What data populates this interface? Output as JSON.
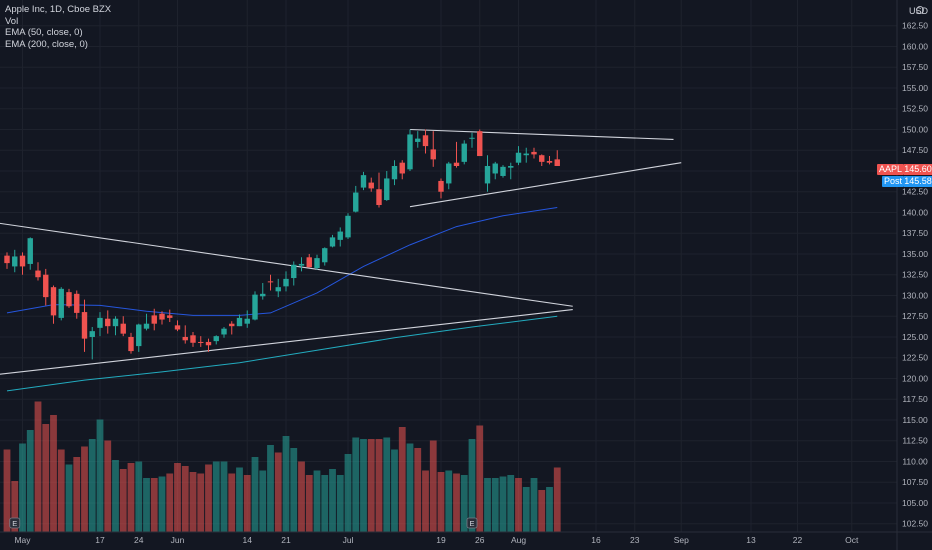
{
  "legend": {
    "title": "Apple Inc, 1D, Cboe BZX",
    "vol": "Vol",
    "ema50": "EMA (50, close, 0)",
    "ema200": "EMA (200, close, 0)"
  },
  "currency": "USD",
  "tags": {
    "symbol": "AAPL",
    "last": "145.60",
    "post_label": "Post",
    "post": "145.58"
  },
  "colors": {
    "background": "#131722",
    "up": "#26a69a",
    "down": "#ef5350",
    "ema50": "#2962ff",
    "ema200": "#26c6da",
    "trendline": "#d1d4dc",
    "post": "#2196f3"
  },
  "chart_data": {
    "type": "candlestick",
    "y_axis": {
      "min": 101.5,
      "max": 165,
      "ticks": [
        102.5,
        105.0,
        107.5,
        110.0,
        112.5,
        115.0,
        117.5,
        120.0,
        122.5,
        125.0,
        127.5,
        130.0,
        132.5,
        135.0,
        137.5,
        140.0,
        142.5,
        145.0,
        147.5,
        150.0,
        152.5,
        155.0,
        157.5,
        160.0,
        162.5
      ]
    },
    "x_axis": {
      "ticks": [
        {
          "label": "May",
          "idx": 2
        },
        {
          "label": "17",
          "idx": 12
        },
        {
          "label": "24",
          "idx": 17
        },
        {
          "label": "Jun",
          "idx": 22
        },
        {
          "label": "14",
          "idx": 31
        },
        {
          "label": "21",
          "idx": 36
        },
        {
          "label": "Jul",
          "idx": 44
        },
        {
          "label": "19",
          "idx": 56
        },
        {
          "label": "26",
          "idx": 61
        },
        {
          "label": "Aug",
          "idx": 66
        },
        {
          "label": "16",
          "idx": 76
        },
        {
          "label": "23",
          "idx": 81
        },
        {
          "label": "Sep",
          "idx": 87
        },
        {
          "label": "13",
          "idx": 96
        },
        {
          "label": "22",
          "idx": 102
        },
        {
          "label": "Oct",
          "idx": 109
        }
      ]
    },
    "candles": [
      {
        "o": 134.8,
        "h": 135.2,
        "l": 133.2,
        "c": 133.9
      },
      {
        "o": 133.5,
        "h": 135.5,
        "l": 132.8,
        "c": 134.7
      },
      {
        "o": 134.8,
        "h": 135.2,
        "l": 132.5,
        "c": 133.5
      },
      {
        "o": 133.8,
        "h": 137.0,
        "l": 133.1,
        "c": 136.9
      },
      {
        "o": 133.0,
        "h": 134.0,
        "l": 131.8,
        "c": 132.2
      },
      {
        "o": 132.5,
        "h": 133.2,
        "l": 128.8,
        "c": 129.8
      },
      {
        "o": 131.0,
        "h": 131.2,
        "l": 126.6,
        "c": 127.6
      },
      {
        "o": 127.3,
        "h": 131.0,
        "l": 127.0,
        "c": 130.8
      },
      {
        "o": 130.4,
        "h": 130.8,
        "l": 128.5,
        "c": 128.7
      },
      {
        "o": 130.2,
        "h": 130.6,
        "l": 127.2,
        "c": 127.9
      },
      {
        "o": 128.0,
        "h": 129.5,
        "l": 123.2,
        "c": 124.8
      },
      {
        "o": 125.0,
        "h": 126.2,
        "l": 122.3,
        "c": 125.7
      },
      {
        "o": 126.1,
        "h": 128.0,
        "l": 125.1,
        "c": 127.3
      },
      {
        "o": 127.2,
        "h": 128.2,
        "l": 125.4,
        "c": 126.3
      },
      {
        "o": 126.3,
        "h": 127.5,
        "l": 125.2,
        "c": 127.2
      },
      {
        "o": 126.6,
        "h": 127.5,
        "l": 125.1,
        "c": 125.4
      },
      {
        "o": 125.0,
        "h": 125.5,
        "l": 123.0,
        "c": 123.3
      },
      {
        "o": 123.9,
        "h": 126.6,
        "l": 123.2,
        "c": 126.5
      },
      {
        "o": 126.0,
        "h": 127.8,
        "l": 125.8,
        "c": 126.6
      },
      {
        "o": 127.6,
        "h": 128.4,
        "l": 125.8,
        "c": 126.6
      },
      {
        "o": 127.8,
        "h": 128.1,
        "l": 126.5,
        "c": 127.1
      },
      {
        "o": 127.6,
        "h": 128.3,
        "l": 126.8,
        "c": 127.3
      },
      {
        "o": 126.4,
        "h": 127.0,
        "l": 125.7,
        "c": 125.9
      },
      {
        "o": 125.0,
        "h": 126.4,
        "l": 124.2,
        "c": 124.6
      },
      {
        "o": 125.2,
        "h": 125.6,
        "l": 123.8,
        "c": 124.3
      },
      {
        "o": 124.4,
        "h": 125.1,
        "l": 123.8,
        "c": 124.3
      },
      {
        "o": 124.4,
        "h": 124.8,
        "l": 123.2,
        "c": 124.0
      },
      {
        "o": 124.5,
        "h": 125.2,
        "l": 124.1,
        "c": 125.1
      },
      {
        "o": 125.3,
        "h": 126.2,
        "l": 124.9,
        "c": 126.0
      },
      {
        "o": 126.6,
        "h": 126.9,
        "l": 125.3,
        "c": 126.3
      },
      {
        "o": 126.3,
        "h": 127.7,
        "l": 126.3,
        "c": 127.3
      },
      {
        "o": 126.6,
        "h": 128.2,
        "l": 126.1,
        "c": 127.2
      },
      {
        "o": 127.1,
        "h": 130.5,
        "l": 127.0,
        "c": 130.1
      },
      {
        "o": 129.9,
        "h": 131.5,
        "l": 129.5,
        "c": 130.2
      },
      {
        "o": 131.7,
        "h": 132.5,
        "l": 130.6,
        "c": 131.6
      },
      {
        "o": 130.5,
        "h": 132.0,
        "l": 129.8,
        "c": 131.0
      },
      {
        "o": 131.1,
        "h": 132.9,
        "l": 130.5,
        "c": 132.0
      },
      {
        "o": 132.1,
        "h": 134.1,
        "l": 131.2,
        "c": 133.7
      },
      {
        "o": 133.6,
        "h": 134.6,
        "l": 132.9,
        "c": 133.8
      },
      {
        "o": 134.6,
        "h": 135.0,
        "l": 133.4,
        "c": 133.4
      },
      {
        "o": 133.3,
        "h": 134.9,
        "l": 133.1,
        "c": 134.5
      },
      {
        "o": 134.0,
        "h": 135.8,
        "l": 133.6,
        "c": 135.7
      },
      {
        "o": 135.9,
        "h": 137.3,
        "l": 135.8,
        "c": 137.0
      },
      {
        "o": 136.7,
        "h": 138.2,
        "l": 135.9,
        "c": 137.7
      },
      {
        "o": 137.0,
        "h": 139.9,
        "l": 136.8,
        "c": 139.6
      },
      {
        "o": 140.1,
        "h": 143.2,
        "l": 140.0,
        "c": 142.4
      },
      {
        "o": 143.0,
        "h": 144.9,
        "l": 142.7,
        "c": 144.5
      },
      {
        "o": 143.6,
        "h": 144.2,
        "l": 142.5,
        "c": 142.9
      },
      {
        "o": 142.8,
        "h": 144.8,
        "l": 140.6,
        "c": 140.9
      },
      {
        "o": 141.5,
        "h": 145.0,
        "l": 141.4,
        "c": 144.1
      },
      {
        "o": 144.0,
        "h": 146.3,
        "l": 143.3,
        "c": 145.6
      },
      {
        "o": 146.0,
        "h": 146.3,
        "l": 144.0,
        "c": 144.7
      },
      {
        "o": 145.2,
        "h": 150.0,
        "l": 145.0,
        "c": 149.4
      },
      {
        "o": 148.5,
        "h": 149.8,
        "l": 147.8,
        "c": 148.9
      },
      {
        "o": 149.3,
        "h": 150.0,
        "l": 147.1,
        "c": 148.0
      },
      {
        "o": 147.6,
        "h": 149.8,
        "l": 145.5,
        "c": 146.4
      },
      {
        "o": 143.8,
        "h": 144.1,
        "l": 141.7,
        "c": 142.5
      },
      {
        "o": 143.5,
        "h": 146.1,
        "l": 142.8,
        "c": 145.9
      },
      {
        "o": 146.0,
        "h": 148.5,
        "l": 145.4,
        "c": 145.6
      },
      {
        "o": 146.1,
        "h": 148.7,
        "l": 145.8,
        "c": 148.3
      },
      {
        "o": 148.9,
        "h": 149.6,
        "l": 147.8,
        "c": 149.0
      },
      {
        "o": 149.8,
        "h": 150.0,
        "l": 147.1,
        "c": 146.8
      },
      {
        "o": 143.5,
        "h": 146.9,
        "l": 142.5,
        "c": 145.6
      },
      {
        "o": 144.7,
        "h": 146.1,
        "l": 144.0,
        "c": 145.9
      },
      {
        "o": 144.4,
        "h": 145.7,
        "l": 144.2,
        "c": 145.5
      },
      {
        "o": 145.4,
        "h": 146.0,
        "l": 144.0,
        "c": 145.6
      },
      {
        "o": 146.0,
        "h": 148.0,
        "l": 145.7,
        "c": 147.2
      },
      {
        "o": 146.9,
        "h": 147.8,
        "l": 146.0,
        "c": 147.1
      },
      {
        "o": 147.3,
        "h": 147.8,
        "l": 146.5,
        "c": 147.0
      },
      {
        "o": 146.9,
        "h": 147.0,
        "l": 145.6,
        "c": 146.1
      },
      {
        "o": 146.2,
        "h": 146.8,
        "l": 145.8,
        "c": 146.0
      },
      {
        "o": 146.4,
        "h": 147.5,
        "l": 145.6,
        "c": 145.6
      }
    ],
    "volume": [
      {
        "v": 0.55,
        "up": false
      },
      {
        "v": 0.34,
        "up": false
      },
      {
        "v": 0.59,
        "up": true
      },
      {
        "v": 0.68,
        "up": true
      },
      {
        "v": 0.87,
        "up": false
      },
      {
        "v": 0.72,
        "up": false
      },
      {
        "v": 0.78,
        "up": false
      },
      {
        "v": 0.55,
        "up": false
      },
      {
        "v": 0.45,
        "up": true
      },
      {
        "v": 0.5,
        "up": false
      },
      {
        "v": 0.57,
        "up": false
      },
      {
        "v": 0.62,
        "up": true
      },
      {
        "v": 0.75,
        "up": true
      },
      {
        "v": 0.61,
        "up": false
      },
      {
        "v": 0.48,
        "up": true
      },
      {
        "v": 0.42,
        "up": false
      },
      {
        "v": 0.46,
        "up": false
      },
      {
        "v": 0.47,
        "up": true
      },
      {
        "v": 0.36,
        "up": true
      },
      {
        "v": 0.36,
        "up": false
      },
      {
        "v": 0.37,
        "up": true
      },
      {
        "v": 0.39,
        "up": false
      },
      {
        "v": 0.46,
        "up": false
      },
      {
        "v": 0.44,
        "up": false
      },
      {
        "v": 0.4,
        "up": false
      },
      {
        "v": 0.39,
        "up": false
      },
      {
        "v": 0.45,
        "up": false
      },
      {
        "v": 0.47,
        "up": true
      },
      {
        "v": 0.47,
        "up": true
      },
      {
        "v": 0.39,
        "up": false
      },
      {
        "v": 0.43,
        "up": true
      },
      {
        "v": 0.38,
        "up": false
      },
      {
        "v": 0.5,
        "up": true
      },
      {
        "v": 0.41,
        "up": true
      },
      {
        "v": 0.58,
        "up": true
      },
      {
        "v": 0.53,
        "up": false
      },
      {
        "v": 0.64,
        "up": true
      },
      {
        "v": 0.56,
        "up": true
      },
      {
        "v": 0.47,
        "up": false
      },
      {
        "v": 0.38,
        "up": false
      },
      {
        "v": 0.41,
        "up": true
      },
      {
        "v": 0.38,
        "up": true
      },
      {
        "v": 0.42,
        "up": true
      },
      {
        "v": 0.38,
        "up": true
      },
      {
        "v": 0.52,
        "up": true
      },
      {
        "v": 0.63,
        "up": true
      },
      {
        "v": 0.62,
        "up": true
      },
      {
        "v": 0.62,
        "up": false
      },
      {
        "v": 0.62,
        "up": false
      },
      {
        "v": 0.63,
        "up": true
      },
      {
        "v": 0.55,
        "up": true
      },
      {
        "v": 0.7,
        "up": false
      },
      {
        "v": 0.59,
        "up": true
      },
      {
        "v": 0.56,
        "up": false
      },
      {
        "v": 0.41,
        "up": false
      },
      {
        "v": 0.61,
        "up": false
      },
      {
        "v": 0.4,
        "up": false
      },
      {
        "v": 0.41,
        "up": true
      },
      {
        "v": 0.39,
        "up": false
      },
      {
        "v": 0.38,
        "up": true
      },
      {
        "v": 0.62,
        "up": true
      },
      {
        "v": 0.71,
        "up": false
      },
      {
        "v": 0.36,
        "up": true
      },
      {
        "v": 0.36,
        "up": true
      },
      {
        "v": 0.37,
        "up": true
      },
      {
        "v": 0.38,
        "up": true
      },
      {
        "v": 0.36,
        "up": false
      },
      {
        "v": 0.3,
        "up": true
      },
      {
        "v": 0.36,
        "up": true
      },
      {
        "v": 0.28,
        "up": false
      },
      {
        "v": 0.3,
        "up": true
      },
      {
        "v": 0.43,
        "up": false
      }
    ],
    "ema50": [
      {
        "idx": 0,
        "v": 127.9
      },
      {
        "idx": 6,
        "v": 128.9
      },
      {
        "idx": 12,
        "v": 128.8
      },
      {
        "idx": 18,
        "v": 128.1
      },
      {
        "idx": 24,
        "v": 127.6
      },
      {
        "idx": 30,
        "v": 127.6
      },
      {
        "idx": 34,
        "v": 127.9
      },
      {
        "idx": 40,
        "v": 130.3
      },
      {
        "idx": 46,
        "v": 133.5
      },
      {
        "idx": 52,
        "v": 136.1
      },
      {
        "idx": 58,
        "v": 138.3
      },
      {
        "idx": 64,
        "v": 139.6
      },
      {
        "idx": 71,
        "v": 140.6
      }
    ],
    "ema200": [
      {
        "idx": 0,
        "v": 118.5
      },
      {
        "idx": 10,
        "v": 119.8
      },
      {
        "idx": 20,
        "v": 120.8
      },
      {
        "idx": 30,
        "v": 121.9
      },
      {
        "idx": 40,
        "v": 123.4
      },
      {
        "idx": 50,
        "v": 124.9
      },
      {
        "idx": 60,
        "v": 126.2
      },
      {
        "idx": 71,
        "v": 127.5
      }
    ],
    "trendlines": [
      {
        "from": {
          "idx": -1,
          "v": 138.7
        },
        "to": {
          "idx": 73,
          "v": 128.7
        }
      },
      {
        "from": {
          "idx": -1,
          "v": 120.5
        },
        "to": {
          "idx": 73,
          "v": 128.3
        }
      },
      {
        "from": {
          "idx": 52,
          "v": 150.0
        },
        "to": {
          "idx": 86,
          "v": 148.8
        }
      },
      {
        "from": {
          "idx": 52,
          "v": 140.7
        },
        "to": {
          "idx": 87,
          "v": 146.0
        }
      }
    ],
    "markers": [
      {
        "idx": 1,
        "label": "E"
      },
      {
        "idx": 60,
        "label": "E"
      }
    ]
  }
}
